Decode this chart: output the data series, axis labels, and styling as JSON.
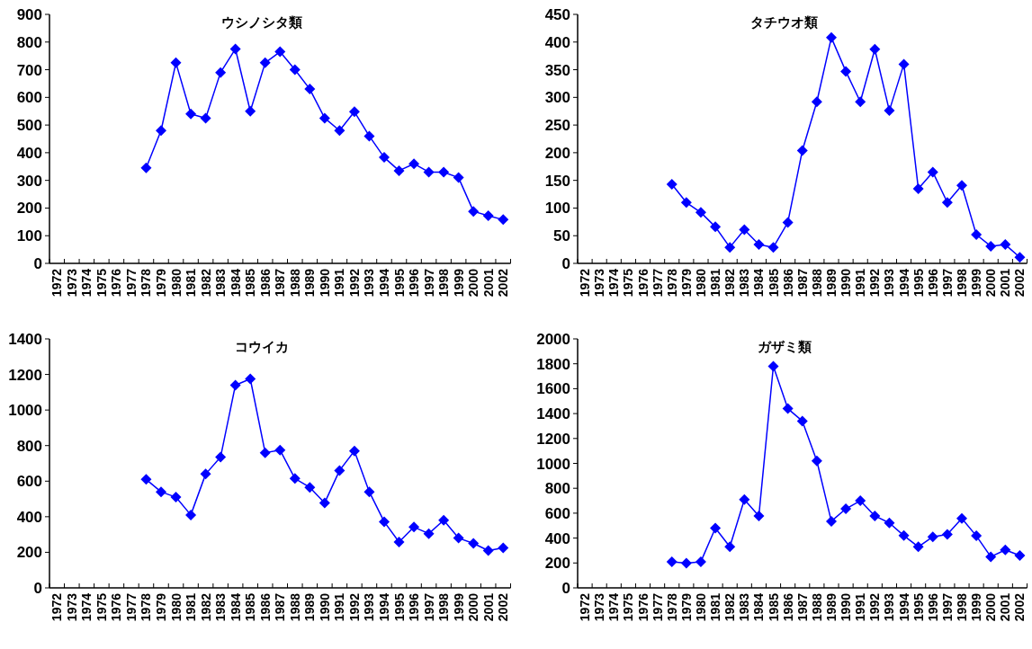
{
  "chart_data": [
    {
      "type": "line",
      "title": "ウシノシタ類",
      "categories": [
        "1972",
        "1973",
        "1974",
        "1975",
        "1976",
        "1977",
        "1978",
        "1979",
        "1980",
        "1981",
        "1982",
        "1983",
        "1984",
        "1985",
        "1986",
        "1987",
        "1988",
        "1989",
        "1990",
        "1991",
        "1992",
        "1993",
        "1994",
        "1995",
        "1996",
        "1997",
        "1998",
        "1999",
        "2000",
        "2001",
        "2002"
      ],
      "ylim": [
        0,
        900
      ],
      "yticks": [
        0,
        100,
        200,
        300,
        400,
        500,
        600,
        700,
        800,
        900
      ],
      "marker": "diamond",
      "line_style": "solid",
      "series": [
        {
          "color": "#0000ff",
          "values": [
            null,
            null,
            null,
            null,
            null,
            null,
            345,
            480,
            725,
            540,
            525,
            690,
            775,
            550,
            725,
            765,
            700,
            630,
            525,
            480,
            548,
            460,
            383,
            335,
            360,
            330,
            330,
            310,
            188,
            172,
            158
          ]
        }
      ]
    },
    {
      "type": "line",
      "title": "タチウオ類",
      "categories": [
        "1972",
        "1973",
        "1974",
        "1975",
        "1976",
        "1977",
        "1978",
        "1979",
        "1980",
        "1981",
        "1982",
        "1983",
        "1984",
        "1985",
        "1986",
        "1987",
        "1988",
        "1989",
        "1990",
        "1991",
        "1992",
        "1993",
        "1994",
        "1995",
        "1996",
        "1997",
        "1998",
        "1999",
        "2000",
        "2001",
        "2002"
      ],
      "ylim": [
        0,
        450
      ],
      "yticks": [
        0,
        50,
        100,
        150,
        200,
        250,
        300,
        350,
        400,
        450
      ],
      "marker": "diamond",
      "line_style": "solid",
      "series": [
        {
          "color": "#0000ff",
          "values": [
            null,
            null,
            null,
            null,
            null,
            null,
            143,
            110,
            92,
            66,
            29,
            61,
            34,
            29,
            74,
            204,
            292,
            408,
            347,
            292,
            387,
            276,
            360,
            135,
            165,
            110,
            141,
            52,
            31,
            34,
            11
          ]
        }
      ]
    },
    {
      "type": "line",
      "title": "コウイカ",
      "categories": [
        "1972",
        "1973",
        "1974",
        "1975",
        "1976",
        "1977",
        "1978",
        "1979",
        "1980",
        "1981",
        "1982",
        "1983",
        "1984",
        "1985",
        "1986",
        "1987",
        "1988",
        "1989",
        "1990",
        "1991",
        "1992",
        "1993",
        "1994",
        "1995",
        "1996",
        "1997",
        "1998",
        "1999",
        "2000",
        "2001",
        "2002"
      ],
      "ylim": [
        0,
        1400
      ],
      "yticks": [
        0,
        200,
        400,
        600,
        800,
        1000,
        1200,
        1400
      ],
      "marker": "diamond",
      "line_style": "solid",
      "series": [
        {
          "color": "#0000ff",
          "values": [
            null,
            null,
            null,
            null,
            null,
            null,
            610,
            540,
            510,
            410,
            640,
            735,
            1140,
            1175,
            760,
            775,
            615,
            565,
            478,
            660,
            770,
            540,
            372,
            258,
            342,
            305,
            380,
            280,
            250,
            210,
            225
          ]
        }
      ]
    },
    {
      "type": "line",
      "title": "ガザミ類",
      "categories": [
        "1972",
        "1973",
        "1974",
        "1975",
        "1976",
        "1977",
        "1978",
        "1979",
        "1980",
        "1981",
        "1982",
        "1983",
        "1984",
        "1985",
        "1986",
        "1987",
        "1988",
        "1989",
        "1990",
        "1991",
        "1992",
        "1993",
        "1994",
        "1995",
        "1996",
        "1997",
        "1998",
        "1999",
        "2000",
        "2001",
        "2002"
      ],
      "ylim": [
        0,
        2000
      ],
      "yticks": [
        0,
        200,
        400,
        600,
        800,
        1000,
        1200,
        1400,
        1600,
        1800,
        2000
      ],
      "marker": "diamond",
      "line_style": "solid",
      "series": [
        {
          "color": "#0000ff",
          "values": [
            null,
            null,
            null,
            null,
            null,
            null,
            210,
            198,
            210,
            480,
            330,
            710,
            578,
            1780,
            1440,
            1340,
            1020,
            535,
            635,
            700,
            578,
            522,
            420,
            330,
            410,
            430,
            558,
            418,
            250,
            305,
            260
          ]
        }
      ]
    }
  ]
}
